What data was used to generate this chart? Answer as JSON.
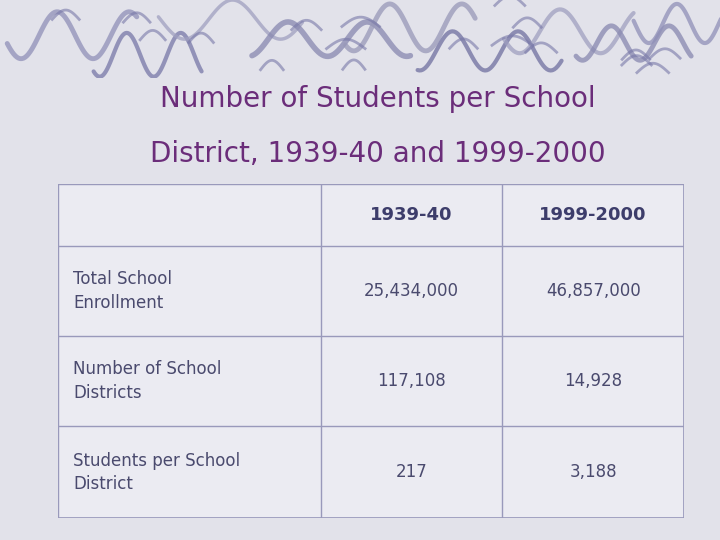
{
  "title_line1": "Number of Students per School",
  "title_line2": "District, 1939-40 and 1999-2000",
  "title_color": "#6B2D7A",
  "col_headers": [
    "1939-40",
    "1999-2000"
  ],
  "col_header_color": "#3d3d6b",
  "row_labels": [
    "Total School\nEnrollment",
    "Number of School\nDistricts",
    "Students per School\nDistrict"
  ],
  "row_label_color": "#4a4a6e",
  "data": [
    [
      "25,434,000",
      "46,857,000"
    ],
    [
      "117,108",
      "14,928"
    ],
    [
      "217",
      "3,188"
    ]
  ],
  "data_color": "#4a4a6e",
  "bg_top_color": "#c5c8dc",
  "bg_main_color": "#e2e2ea",
  "table_bg_color": "#ebebf2",
  "grid_color": "#9999bb",
  "swirl_color": "#8888aa",
  "title_fontsize": 20,
  "header_fontsize": 13,
  "cell_fontsize": 12,
  "fig_width": 7.2,
  "fig_height": 5.4
}
